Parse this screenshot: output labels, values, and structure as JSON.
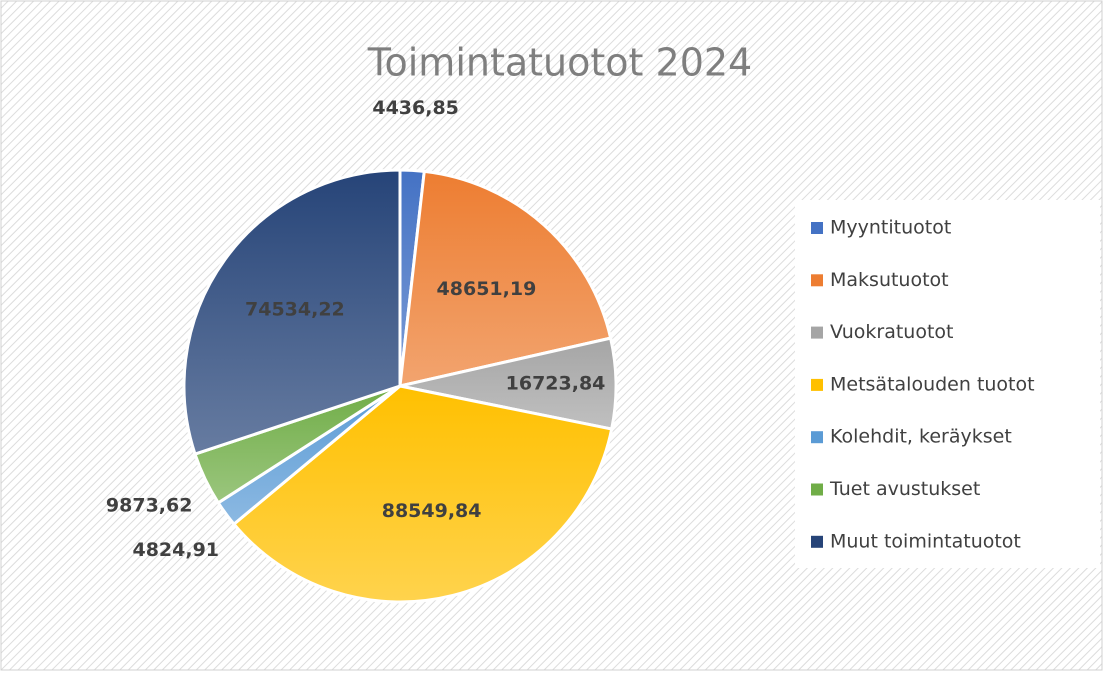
{
  "chart_data": {
    "type": "pie",
    "title": "Toimintatuotot 2024",
    "categories": [
      "Myyntituotot",
      "Maksutuotot",
      "Vuokratuotot",
      "Metsätalouden tuotot",
      "Kolehdit, keräykset",
      "Tuet avustukset",
      "Muut toimintatuotot"
    ],
    "values": [
      4436.85,
      48651.19,
      16723.84,
      88549.84,
      4824.91,
      9873.62,
      74534.22
    ],
    "value_labels": [
      "4436,85",
      "48651,19",
      "16723,84",
      "88549,84",
      "4824,91",
      "9873,62",
      "74534,22"
    ],
    "colors": [
      "#4472c4",
      "#ed7d31",
      "#a5a5a5",
      "#ffc000",
      "#5b9bd5",
      "#70ad47",
      "#264478"
    ],
    "legend": "right"
  }
}
